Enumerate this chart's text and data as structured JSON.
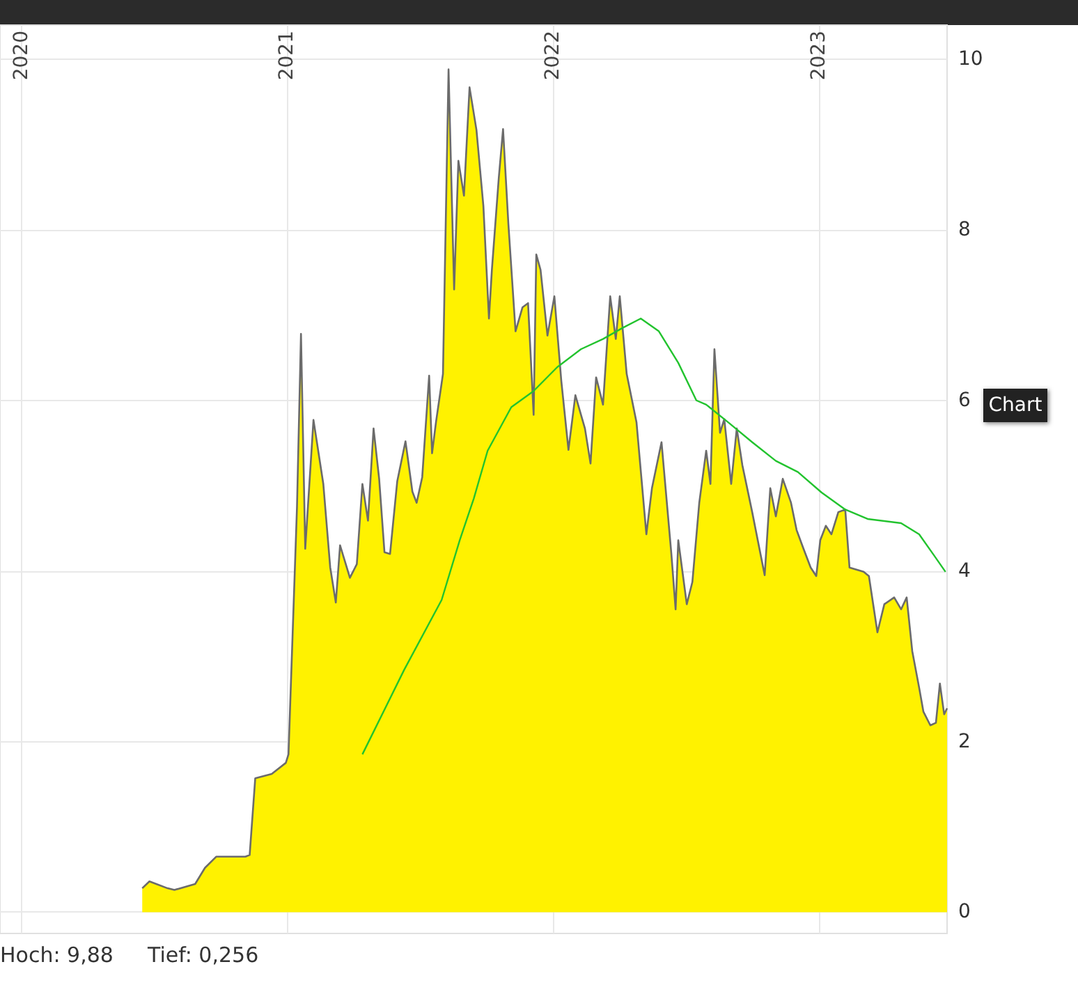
{
  "chart_data": {
    "type": "area",
    "xlim": [
      2019.92,
      2023.482
    ],
    "xticks": [
      2020,
      2021,
      2022,
      2023
    ],
    "ylim": [
      -0.25,
      10.4
    ],
    "yticks": [
      0,
      2,
      4,
      6,
      8,
      10
    ],
    "grid": true,
    "marker": "none",
    "annotations": [
      "Hoch: 9,88",
      "Tief: 0,256",
      "Chart"
    ],
    "series": [
      {
        "color": "#fff200",
        "x": [
          2020.455,
          2020.482,
          2020.55,
          2020.576,
          2020.654,
          2020.691,
          2020.733,
          2020.843,
          2020.859,
          2020.88,
          2020.942,
          2020.995,
          2021.005,
          2021.037,
          2021.052,
          2021.068,
          2021.099,
          2021.136,
          2021.162,
          2021.183,
          2021.199,
          2021.236,
          2021.262,
          2021.283,
          2021.304,
          2021.325,
          2021.346,
          2021.366,
          2021.387,
          2021.414,
          2021.445,
          2021.471,
          2021.487,
          2021.508,
          2021.534,
          2021.545,
          2021.56,
          2021.586,
          2021.607,
          2021.628,
          2021.644,
          2021.665,
          2021.686,
          2021.712,
          2021.738,
          2021.759,
          2021.77,
          2021.796,
          2021.812,
          2021.832,
          2021.859,
          2021.885,
          2021.906,
          2021.927,
          2021.937,
          2021.953,
          2021.979,
          2022.005,
          2022.031,
          2022.058,
          2022.084,
          2022.12,
          2022.141,
          2022.162,
          2022.188,
          2022.215,
          2022.236,
          2022.251,
          2022.277,
          2022.314,
          2022.351,
          2022.372,
          2022.408,
          2022.445,
          2022.461,
          2022.471,
          2022.503,
          2022.524,
          2022.55,
          2022.576,
          2022.592,
          2022.607,
          2022.628,
          2022.644,
          2022.67,
          2022.691,
          2022.712,
          2022.749,
          2022.796,
          2022.817,
          2022.838,
          2022.864,
          2022.895,
          2022.916,
          2022.942,
          2022.969,
          2022.99,
          2023.005,
          2023.026,
          2023.047,
          2023.073,
          2023.099,
          2023.115,
          2023.168,
          2023.188,
          2023.22,
          2023.246,
          2023.283,
          2023.309,
          2023.33,
          2023.351,
          2023.377,
          2023.393,
          2023.419,
          2023.44,
          2023.455,
          2023.471,
          2023.482
        ],
        "values": [
          0.28,
          0.36,
          0.28,
          0.26,
          0.33,
          0.52,
          0.65,
          0.65,
          0.67,
          1.57,
          1.62,
          1.75,
          1.85,
          4.75,
          6.78,
          4.26,
          5.77,
          5.02,
          4.04,
          3.63,
          4.3,
          3.92,
          4.08,
          5.02,
          4.59,
          5.67,
          5.08,
          4.22,
          4.2,
          5.05,
          5.52,
          4.93,
          4.8,
          5.1,
          6.29,
          5.38,
          5.75,
          6.31,
          9.88,
          7.3,
          8.81,
          8.4,
          9.67,
          9.17,
          8.28,
          6.96,
          7.53,
          8.61,
          9.18,
          8.07,
          6.81,
          7.09,
          7.14,
          5.83,
          7.71,
          7.53,
          6.76,
          7.22,
          6.23,
          5.42,
          6.06,
          5.67,
          5.26,
          6.27,
          5.95,
          7.22,
          6.72,
          7.22,
          6.31,
          5.74,
          4.43,
          4.97,
          5.51,
          4.2,
          3.55,
          4.36,
          3.61,
          3.87,
          4.8,
          5.41,
          5.02,
          6.6,
          5.62,
          5.78,
          5.02,
          5.67,
          5.24,
          4.69,
          3.95,
          4.97,
          4.64,
          5.08,
          4.8,
          4.48,
          4.26,
          4.04,
          3.94,
          4.36,
          4.53,
          4.43,
          4.69,
          4.72,
          4.04,
          3.99,
          3.94,
          3.28,
          3.61,
          3.69,
          3.55,
          3.69,
          3.06,
          2.63,
          2.35,
          2.19,
          2.22,
          2.68,
          2.32,
          2.39
        ]
      },
      {
        "type": "line",
        "color": "#22c32e",
        "x": [
          2021.283,
          2021.44,
          2021.581,
          2021.649,
          2021.702,
          2021.754,
          2021.843,
          2021.927,
          2022.016,
          2022.105,
          2022.188,
          2022.262,
          2022.33,
          2022.398,
          2022.471,
          2022.539,
          2022.576,
          2022.66,
          2022.749,
          2022.838,
          2022.921,
          2023.01,
          2023.099,
          2023.183,
          2023.309,
          2023.377,
          2023.429,
          2023.476
        ],
        "values": [
          1.85,
          2.84,
          3.66,
          4.36,
          4.85,
          5.41,
          5.92,
          6.11,
          6.39,
          6.6,
          6.72,
          6.85,
          6.96,
          6.81,
          6.44,
          6.0,
          5.95,
          5.74,
          5.51,
          5.29,
          5.16,
          4.92,
          4.72,
          4.61,
          4.56,
          4.43,
          4.2,
          3.99
        ]
      }
    ]
  }
}
